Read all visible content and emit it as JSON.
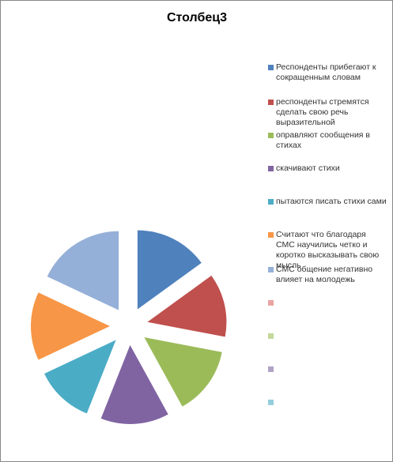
{
  "chart_data": {
    "type": "pie",
    "title": "Столбец3",
    "categories": [
      "Респонденты прибегают к сокращенным словам",
      "респонденты стремятся сделать свою речь выразительной",
      "оправляют сообщения в стихах",
      "скачивают стихи",
      "пытаются писать стихи сами",
      "Считают что благодаря СМС научились четко и коротко высказывать свою мысль",
      "СМС общение негативно влияет на молодежь",
      null,
      null,
      null,
      null
    ],
    "values": [
      15,
      13,
      14,
      14,
      12,
      14,
      18,
      null,
      null,
      null,
      null
    ],
    "colors": [
      "#4f81bd",
      "#c0504d",
      "#9bbb59",
      "#8064a2",
      "#4bacc6",
      "#f79646",
      "#95b0d8",
      "#e8a4a2",
      "#c3d89c",
      "#b0a2c6",
      "#94cedc"
    ],
    "exploded": true
  }
}
